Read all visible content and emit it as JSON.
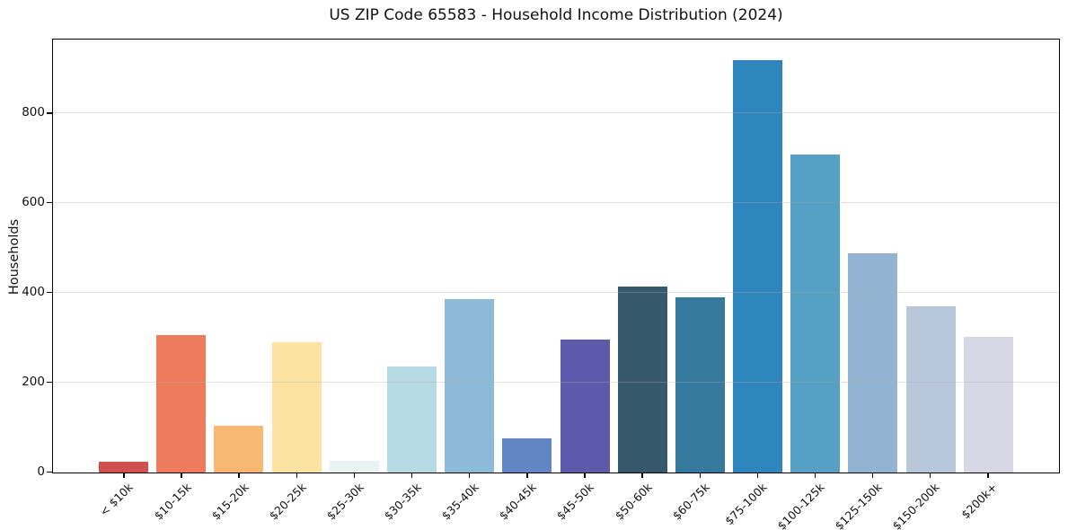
{
  "chart_data": {
    "type": "bar",
    "title": "US ZIP Code 65583 - Household Income Distribution (2024)",
    "xlabel": "",
    "ylabel": "Households",
    "categories": [
      "< $10k",
      "$10-15k",
      "$15-20k",
      "$20-25k",
      "$25-30k",
      "$30-35k",
      "$35-40k",
      "$40-45k",
      "$45-50k",
      "$50-60k",
      "$60-75k",
      "$75-100k",
      "$100-125k",
      "$125-150k",
      "$150-200k",
      "$200k+"
    ],
    "values": [
      25,
      305,
      104,
      290,
      27,
      235,
      385,
      75,
      295,
      413,
      390,
      917,
      708,
      487,
      369,
      302
    ],
    "bar_colors": [
      "#d14f4f",
      "#ee7b5e",
      "#f9b871",
      "#fce3a2",
      "#e8f3f2",
      "#b7dbe4",
      "#8dbad7",
      "#6286c3",
      "#5d5aac",
      "#35596b",
      "#35799e",
      "#2f86bf",
      "#56a0c6",
      "#90b4d2",
      "#b9c7dd",
      "#d7d7e5"
    ],
    "yticks": [
      0,
      200,
      400,
      600,
      800
    ],
    "ylim": [
      0,
      963
    ],
    "grid": "horizontal",
    "grid_over_bars": true,
    "legend": "none",
    "background_color": "#ffffff",
    "spine_color": "#000000",
    "text_color": "#111111"
  }
}
